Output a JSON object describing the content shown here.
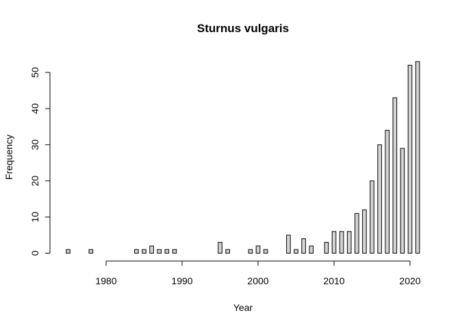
{
  "chart_data": {
    "type": "bar",
    "title": "Sturnus vulgaris",
    "xlabel": "Year",
    "ylabel": "Frequency",
    "x": [
      1975,
      1976,
      1977,
      1978,
      1979,
      1980,
      1981,
      1982,
      1983,
      1984,
      1985,
      1986,
      1987,
      1988,
      1989,
      1990,
      1991,
      1992,
      1993,
      1994,
      1995,
      1996,
      1997,
      1998,
      1999,
      2000,
      2001,
      2002,
      2003,
      2004,
      2005,
      2006,
      2007,
      2008,
      2009,
      2010,
      2011,
      2012,
      2013,
      2014,
      2015,
      2016,
      2017,
      2018,
      2019,
      2020,
      2021
    ],
    "values": [
      1,
      0,
      0,
      1,
      0,
      0,
      0,
      0,
      0,
      1,
      1,
      2,
      1,
      1,
      1,
      0,
      0,
      0,
      0,
      0,
      3,
      1,
      0,
      0,
      1,
      2,
      1,
      0,
      0,
      5,
      1,
      4,
      2,
      0,
      3,
      6,
      6,
      6,
      11,
      12,
      20,
      30,
      34,
      43,
      29,
      52,
      53
    ],
    "xticks": [
      "1980",
      "1990",
      "2000",
      "2010",
      "2020"
    ],
    "yticks": [
      "0",
      "10",
      "20",
      "30",
      "40",
      "50"
    ],
    "ylim": [
      0,
      53
    ],
    "xlim": [
      1975,
      2021
    ],
    "colors": {
      "bar_fill": "#d3d3d3",
      "bar_stroke": "#000000"
    }
  }
}
